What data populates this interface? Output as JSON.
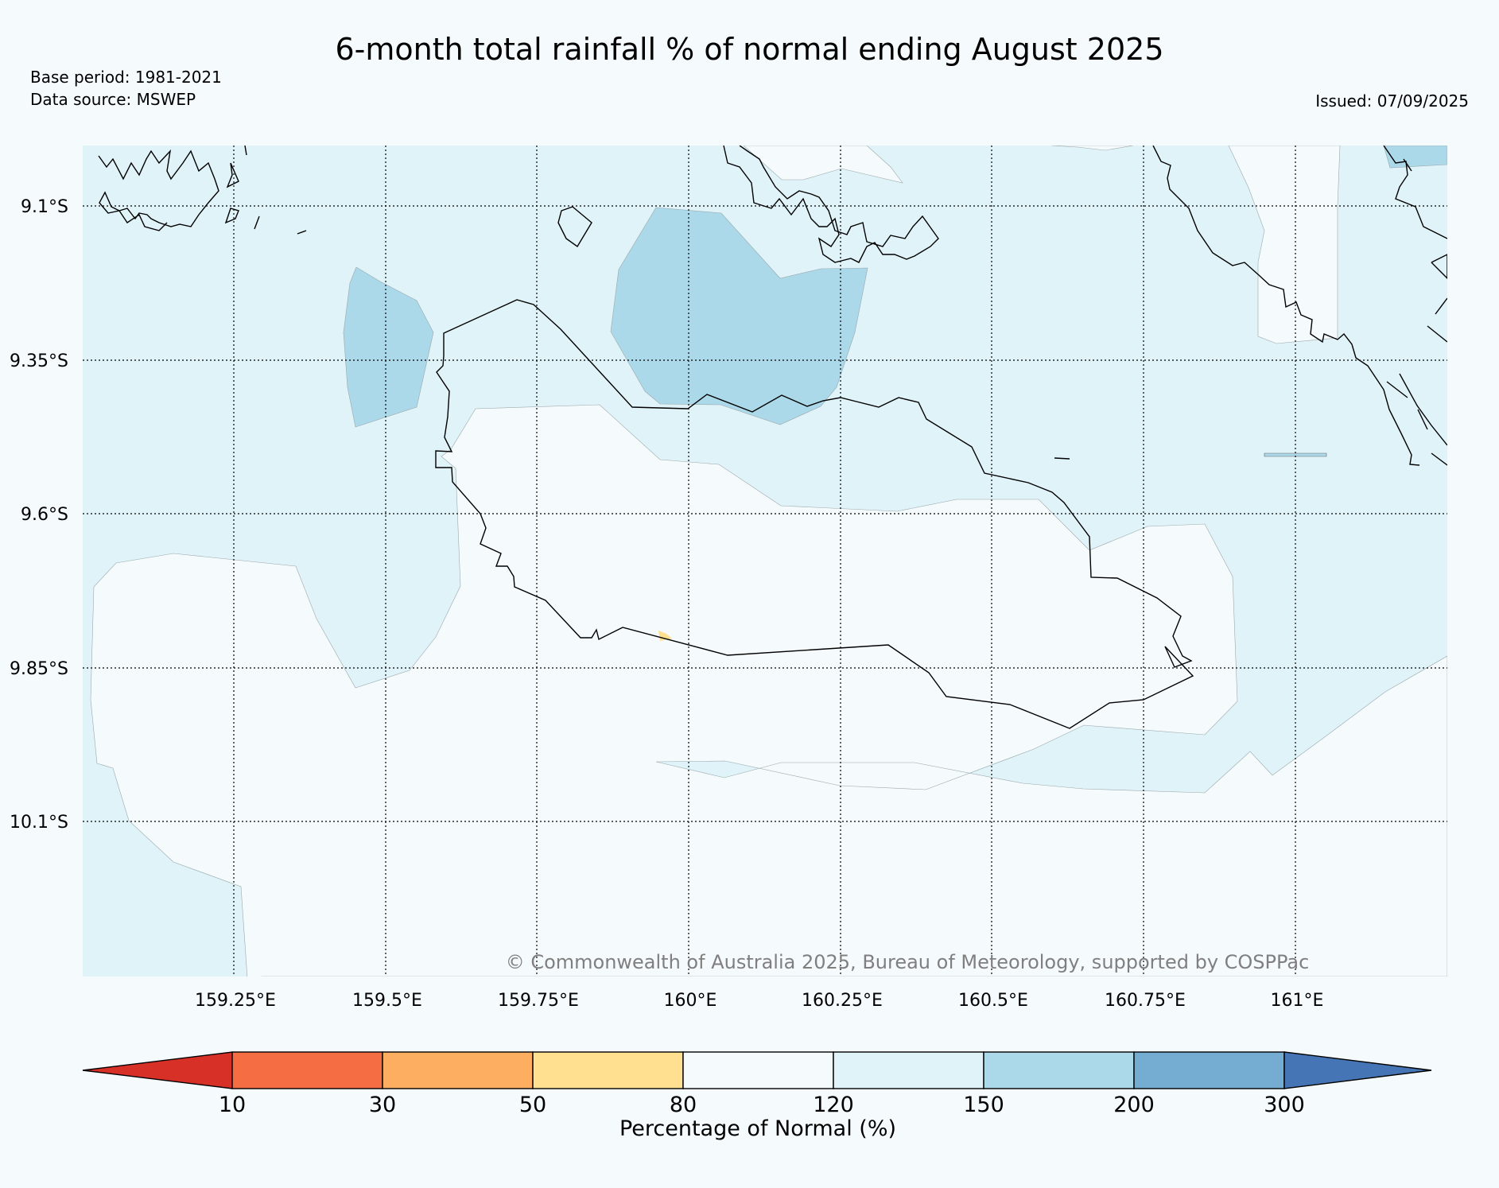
{
  "title": "6-month total rainfall % of normal ending August 2025",
  "meta": {
    "base_period": "Base period: 1981-2021",
    "data_source": "Data source: MSWEP",
    "issued": "Issued: 07/09/2025"
  },
  "map": {
    "lat_labels": [
      "9.1°S",
      "9.35°S",
      "9.6°S",
      "9.85°S",
      "10.1°S"
    ],
    "lon_labels": [
      "159.25°E",
      "159.5°E",
      "159.75°E",
      "160°E",
      "160.25°E",
      "160.5°E",
      "160.75°E",
      "161°E"
    ],
    "copyright": "© Commonwealth of Australia 2025, Bureau of Meteorology, supported by COSPPac"
  },
  "colorbar": {
    "ticks": [
      "10",
      "30",
      "50",
      "80",
      "120",
      "150",
      "200",
      "300"
    ],
    "label": "Percentage of Normal (%)",
    "colors": {
      "lt10": "#d73027",
      "10_30": "#f46d43",
      "30_50": "#fdae61",
      "50_80": "#fee090",
      "80_120": "#f5fafc",
      "120_150": "#e0f3f8",
      "150_200": "#abd9e9",
      "200_300": "#74add1",
      "gt300": "#4575b4"
    }
  }
}
